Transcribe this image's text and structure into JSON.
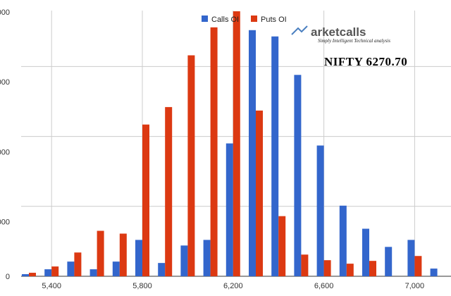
{
  "chart_data": {
    "type": "bar",
    "title": "",
    "xlabel": "",
    "ylabel": "",
    "categories": [
      5300,
      5400,
      5500,
      5600,
      5700,
      5800,
      5900,
      6000,
      6100,
      6200,
      6300,
      6400,
      6500,
      6600,
      6700,
      6800,
      6900,
      7000,
      7100
    ],
    "x_tick_labels": [
      "5,400",
      "5,800",
      "6,200",
      "6,600",
      "7,000"
    ],
    "y_tick_labels": [
      "000",
      "000",
      "000",
      "000",
      "0"
    ],
    "ylim": [
      0,
      3800
    ],
    "grid": true,
    "legend_position": "top-center",
    "series": [
      {
        "name": "Calls OI",
        "color": "#3366cc",
        "values": [
          30,
          100,
          210,
          100,
          210,
          520,
          190,
          440,
          520,
          1900,
          3520,
          3430,
          2880,
          1870,
          1010,
          680,
          420,
          520,
          110
        ]
      },
      {
        "name": "Puts OI",
        "color": "#dc3912",
        "values": [
          50,
          140,
          340,
          650,
          610,
          2170,
          2420,
          3160,
          3560,
          3790,
          2370,
          860,
          310,
          230,
          180,
          220,
          null,
          290,
          null
        ]
      }
    ]
  },
  "overlay": {
    "nifty_text": "NIFTY 6270.70",
    "logo_text": "arketcalls",
    "logo_tagline": "Simply Intelligent Technical analysis"
  }
}
